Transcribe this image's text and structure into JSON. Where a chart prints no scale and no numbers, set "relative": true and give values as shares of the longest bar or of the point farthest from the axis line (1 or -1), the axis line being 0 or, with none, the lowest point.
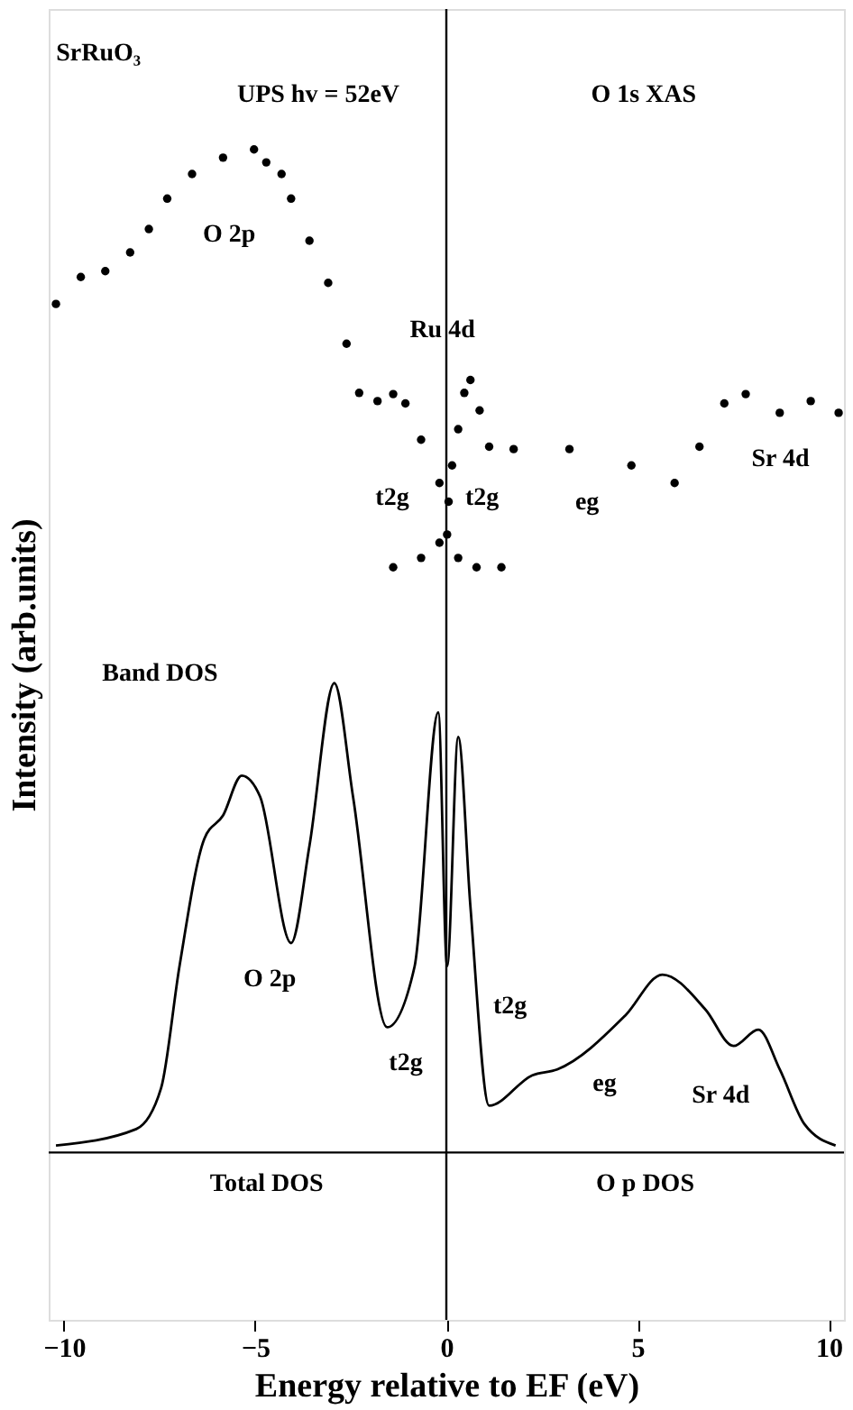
{
  "chart_data": {
    "type": "scatter",
    "relative": true,
    "xlabel": "Energy relative to EF (eV)",
    "ylabel": "Intensity (arb.units)",
    "xlim": [
      -10.4,
      10.4
    ],
    "xticks": [
      -10,
      -5,
      0,
      5,
      10
    ],
    "tick_labels": "x",
    "grid": false,
    "series": [
      {
        "marker": "circle",
        "color": "#000000",
        "x": [
          -10.21,
          -9.56,
          -8.92,
          -8.27,
          -7.78,
          -7.3,
          -6.65,
          -5.84,
          -5.03,
          -4.71,
          -4.31,
          -4.06,
          -3.58,
          -3.09,
          -2.61,
          -2.28,
          -1.8,
          -1.39,
          -1.07,
          -0.66,
          -0.18,
          0.06
        ],
        "values": [
          0.868,
          0.891,
          0.896,
          0.912,
          0.932,
          0.958,
          0.979,
          0.993,
          1.0,
          0.989,
          0.979,
          0.958,
          0.922,
          0.886,
          0.834,
          0.792,
          0.785,
          0.791,
          0.783,
          0.752,
          0.715,
          0.699
        ]
      },
      {
        "marker": "circle",
        "color": "#000000",
        "x": [
          0.15,
          0.31,
          0.47,
          0.63,
          0.87,
          1.12,
          1.76,
          3.22,
          4.84,
          5.97,
          6.62,
          7.27,
          7.83,
          8.72,
          9.53,
          10.26
        ],
        "values": [
          0.73,
          0.761,
          0.792,
          0.803,
          0.777,
          0.746,
          0.744,
          0.744,
          0.73,
          0.715,
          0.746,
          0.783,
          0.791,
          0.775,
          0.785,
          0.775
        ]
      },
      {
        "marker": "circle",
        "color": "#000000",
        "x": [
          -1.39,
          -0.66,
          -0.18,
          0.02,
          0.31,
          0.79,
          1.44
        ],
        "values": [
          0.643,
          0.651,
          0.664,
          0.671,
          0.651,
          0.643,
          0.643
        ]
      },
      {
        "type": "line",
        "line_style": "solid",
        "color": "#000000",
        "x": [
          -10.21,
          -8.11,
          -7.46,
          -6.98,
          -6.33,
          -5.84,
          -5.35,
          -4.87,
          -4.06,
          -3.58,
          -2.93,
          -2.44,
          -1.55,
          -0.83,
          -0.21,
          0.02,
          0.31,
          0.63,
          1.12,
          2.25,
          2.9,
          4.68,
          5.65,
          6.78,
          7.51,
          8.16,
          8.72,
          9.37,
          10.18
        ],
        "values": [
          0.149,
          0.163,
          0.198,
          0.302,
          0.411,
          0.431,
          0.465,
          0.447,
          0.322,
          0.405,
          0.544,
          0.447,
          0.25,
          0.302,
          0.519,
          0.302,
          0.498,
          0.353,
          0.183,
          0.209,
          0.214,
          0.26,
          0.295,
          0.265,
          0.234,
          0.248,
          0.214,
          0.167,
          0.149
        ]
      }
    ],
    "ref_lines": [
      {
        "axis": "x",
        "value": 0,
        "color": "#000000"
      },
      {
        "axis": "y",
        "value": 0.143,
        "color": "#000000"
      }
    ],
    "annotations": [
      "SrRuO₃",
      "UPS hv = 52eV",
      "O 1s XAS",
      "O 2p",
      "Ru 4d",
      "t2g",
      "t2g",
      "eg",
      "Sr 4d",
      "Band DOS",
      "O 2p",
      "t2g",
      "t2g",
      "eg",
      "Sr 4d",
      "Total DOS",
      "O p DOS"
    ]
  }
}
